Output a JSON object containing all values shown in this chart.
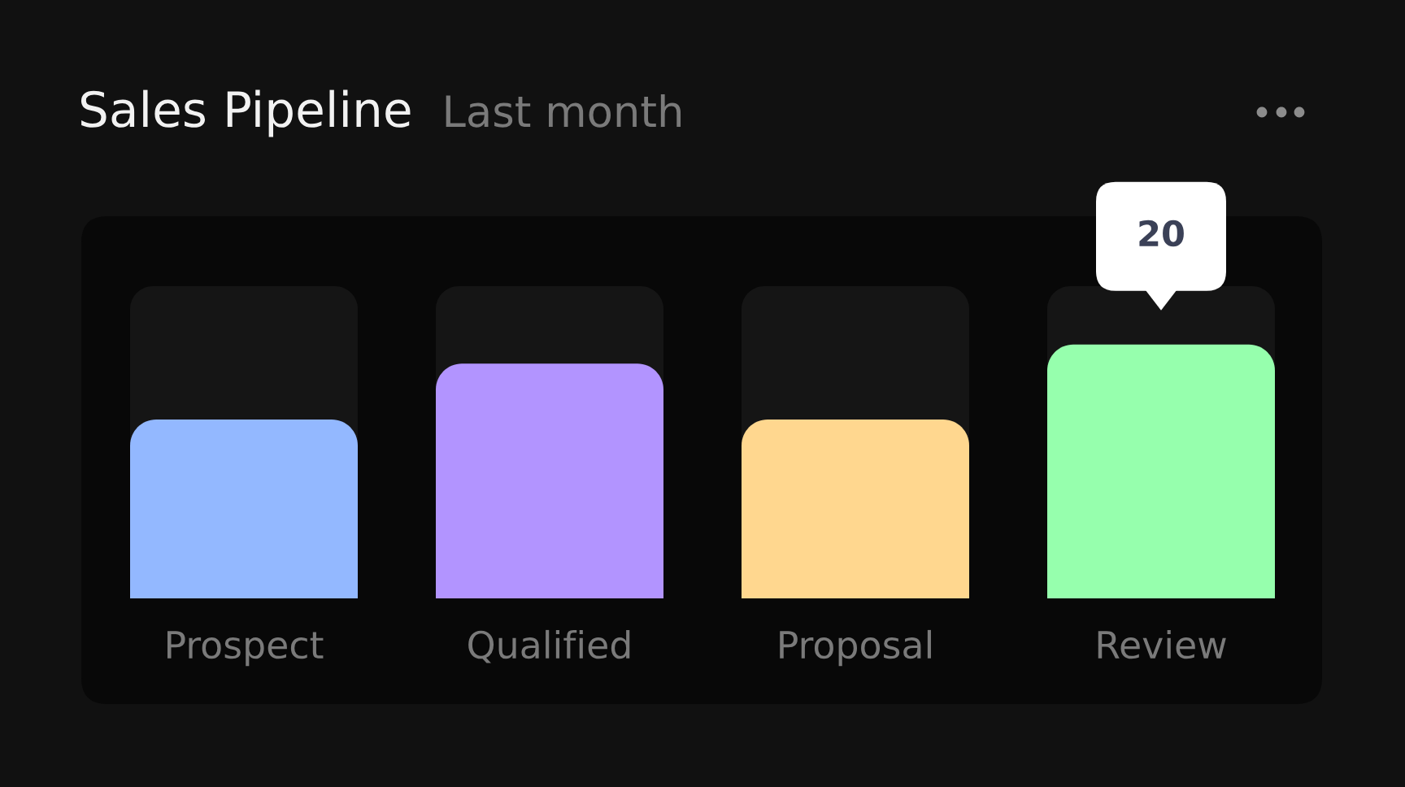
{
  "chart_data": {
    "type": "bar",
    "title": "Sales Pipeline",
    "subtitle": "Last month",
    "categories": [
      "Prospect",
      "Qualified",
      "Proposal",
      "Review"
    ],
    "values": [
      14.1,
      18.5,
      14.1,
      20
    ],
    "colors": [
      "#93b8ff",
      "#b294ff",
      "#ffd78f",
      "#96ffad"
    ],
    "ylim": [
      0,
      24.6
    ],
    "value_labels": [
      null,
      null,
      null,
      "20"
    ],
    "tick_labels": "x"
  }
}
